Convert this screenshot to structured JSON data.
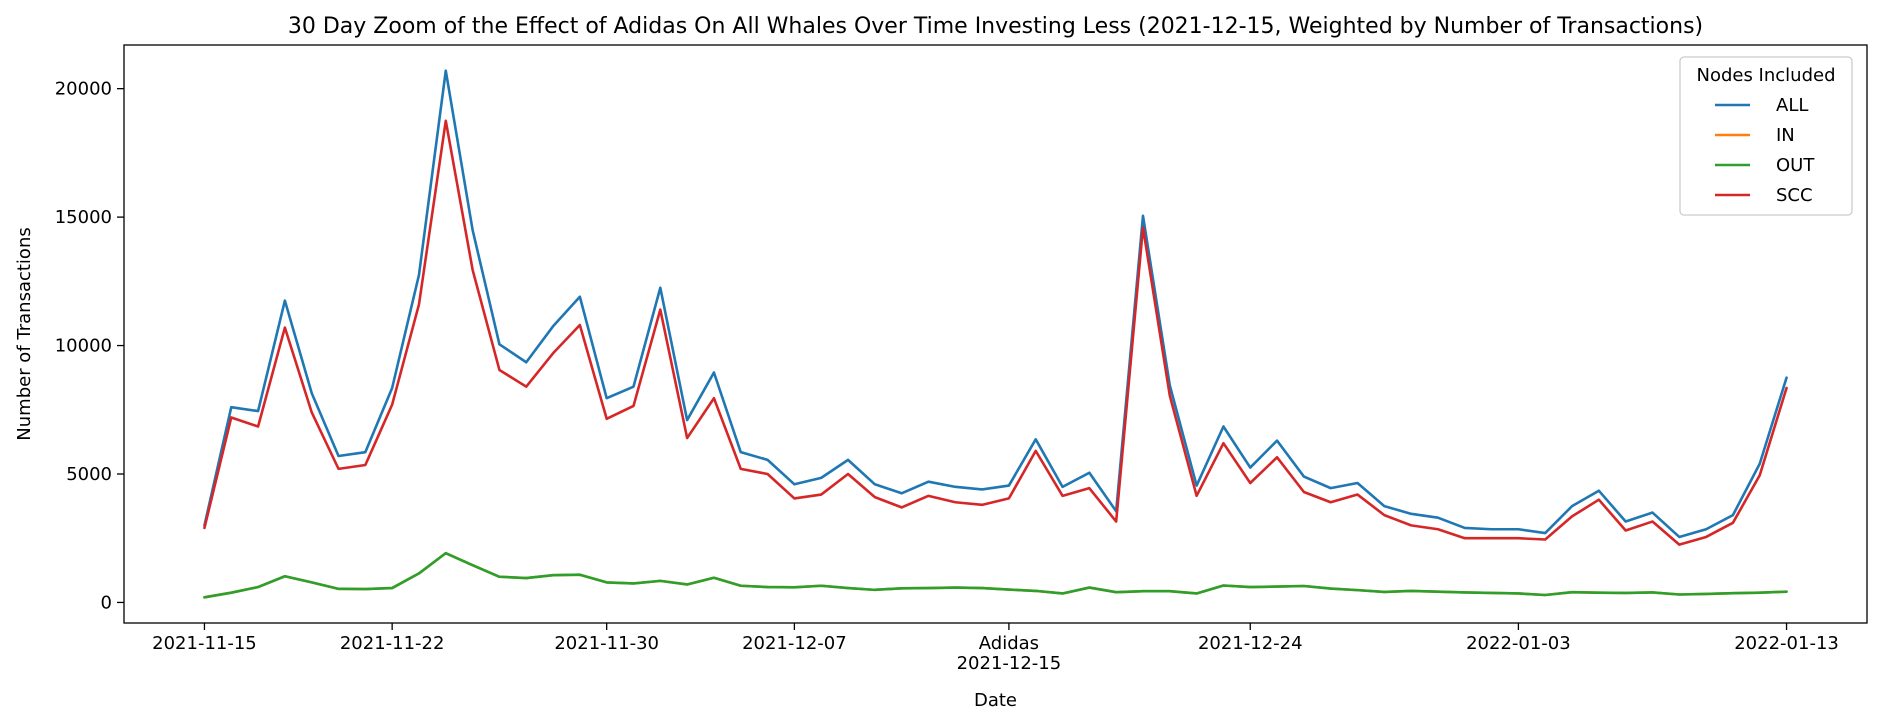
{
  "chart_data": {
    "type": "line",
    "title": "30 Day Zoom of the Effect of Adidas On All Whales Over Time Investing Less (2021-12-15, Weighted by Number of Transactions)",
    "xlabel": "Date",
    "ylabel": "Number of Transactions",
    "x_start": "2021-11-15",
    "x_end": "2022-01-13",
    "xlim": [
      "2021-11-12",
      "2022-01-16"
    ],
    "ylim": [
      -800,
      21700
    ],
    "x_ticks": [
      "2021-11-15",
      "2021-11-22",
      "2021-11-30",
      "2021-12-07",
      "2021-12-15",
      "2021-12-24",
      "2022-01-03",
      "2022-01-13"
    ],
    "y_ticks": [
      0,
      5000,
      10000,
      15000,
      20000
    ],
    "event_label": "Adidas",
    "event_date": "2021-12-15",
    "legend_title": "Nodes Included",
    "legend_position": "top-right",
    "series": [
      {
        "name": "ALL",
        "color": "#1f77b4",
        "values": [
          3000,
          7600,
          7450,
          11750,
          8150,
          5700,
          5850,
          8350,
          12750,
          20700,
          14500,
          10050,
          9350,
          10750,
          11900,
          7950,
          8400,
          12250,
          7100,
          8950,
          5850,
          5550,
          4600,
          4850,
          5550,
          4600,
          4250,
          4700,
          4500,
          4400,
          4550,
          6350,
          4500,
          5050,
          3550,
          15050,
          8450,
          4550,
          6850,
          5250,
          6300,
          4900,
          4450,
          4650,
          3750,
          3450,
          3300,
          2900,
          2850,
          2850,
          2700,
          3750,
          4350,
          3150,
          3500,
          2550,
          2850,
          3400,
          5400,
          8750
        ]
      },
      {
        "name": "IN",
        "color": "#ff7f0e",
        "values": [
          200,
          380,
          600,
          1020,
          780,
          530,
          520,
          560,
          1130,
          1920,
          1450,
          1000,
          950,
          1060,
          1080,
          780,
          740,
          840,
          700,
          960,
          650,
          600,
          590,
          650,
          560,
          490,
          550,
          560,
          580,
          560,
          500,
          450,
          350,
          580,
          400,
          440,
          440,
          350,
          660,
          600,
          620,
          640,
          540,
          480,
          410,
          450,
          420,
          390,
          370,
          350,
          290,
          400,
          380,
          370,
          390,
          310,
          330,
          360,
          380,
          420
        ]
      },
      {
        "name": "OUT",
        "color": "#2ca02c",
        "values": [
          200,
          380,
          600,
          1020,
          780,
          530,
          520,
          560,
          1130,
          1920,
          1450,
          1000,
          950,
          1060,
          1080,
          780,
          740,
          840,
          700,
          960,
          650,
          600,
          590,
          650,
          560,
          490,
          550,
          560,
          580,
          560,
          500,
          450,
          350,
          580,
          400,
          440,
          440,
          350,
          660,
          600,
          620,
          640,
          540,
          480,
          410,
          450,
          420,
          390,
          370,
          350,
          290,
          400,
          380,
          370,
          390,
          310,
          330,
          360,
          380,
          420
        ]
      },
      {
        "name": "SCC",
        "color": "#d62728",
        "values": [
          2900,
          7200,
          6850,
          10700,
          7400,
          5200,
          5350,
          7700,
          11600,
          18750,
          12950,
          9050,
          8400,
          9700,
          10800,
          7150,
          7650,
          11400,
          6400,
          7950,
          5200,
          5000,
          4050,
          4200,
          5000,
          4100,
          3700,
          4150,
          3900,
          3800,
          4050,
          5900,
          4150,
          4450,
          3150,
          14600,
          8050,
          4150,
          6200,
          4650,
          5650,
          4300,
          3900,
          4200,
          3400,
          3000,
          2850,
          2500,
          2500,
          2500,
          2450,
          3350,
          4000,
          2800,
          3150,
          2250,
          2550,
          3100,
          4950,
          8350
        ]
      }
    ]
  }
}
